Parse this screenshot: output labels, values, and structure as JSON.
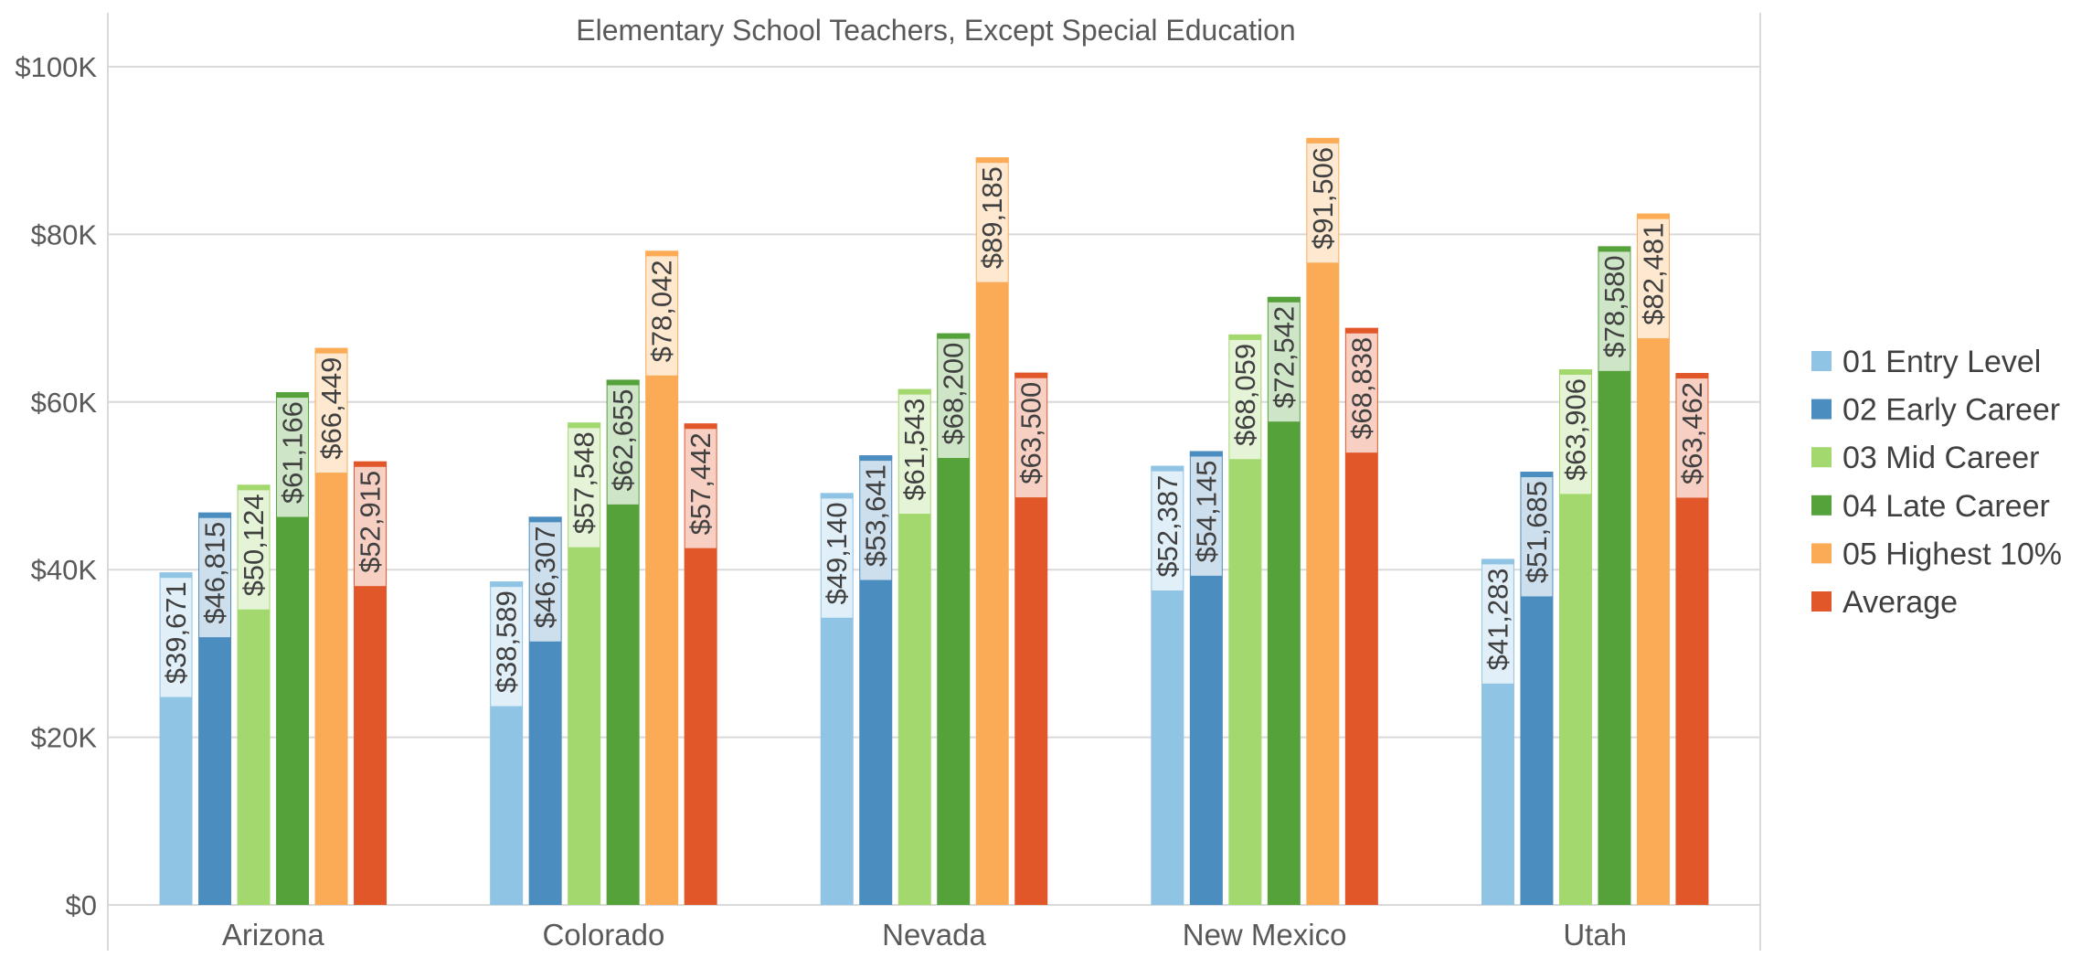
{
  "chart_data": {
    "type": "bar",
    "title": "Elementary School Teachers, Except Special Education",
    "xlabel": "",
    "ylabel": "",
    "categories": [
      "Arizona",
      "Colorado",
      "Nevada",
      "New Mexico",
      "Utah"
    ],
    "ylim": [
      0,
      100000
    ],
    "yticks": [
      0,
      20000,
      40000,
      60000,
      80000,
      100000
    ],
    "ytick_labels": [
      "$0",
      "$20K",
      "$40K",
      "$60K",
      "$80K",
      "$100K"
    ],
    "grid": true,
    "legend_position": "right",
    "series": [
      {
        "name": "01 Entry Level",
        "color": "#90c4e4",
        "values": [
          39671,
          38589,
          49140,
          52387,
          41283
        ],
        "labels": [
          "$39,671",
          "$38,589",
          "$49,140",
          "$52,387",
          "$41,283"
        ]
      },
      {
        "name": "02 Early Career",
        "color": "#4c8dbf",
        "values": [
          46815,
          46307,
          53641,
          54145,
          51685
        ],
        "labels": [
          "$46,815",
          "$46,307",
          "$53,641",
          "$54,145",
          "$51,685"
        ]
      },
      {
        "name": "03 Mid Career",
        "color": "#a2d86e",
        "values": [
          50124,
          57548,
          61543,
          68059,
          63906
        ],
        "labels": [
          "$50,124",
          "$57,548",
          "$61,543",
          "$68,059",
          "$63,906"
        ]
      },
      {
        "name": "04 Late Career",
        "color": "#55a23a",
        "values": [
          61166,
          62655,
          68200,
          72542,
          78580
        ],
        "labels": [
          "$61,166",
          "$62,655",
          "$68,200",
          "$72,542",
          "$78,580"
        ]
      },
      {
        "name": "05 Highest 10%",
        "color": "#fbab56",
        "values": [
          66449,
          78042,
          89185,
          91506,
          82481
        ],
        "labels": [
          "$66,449",
          "$78,042",
          "$89,185",
          "$91,506",
          "$82,481"
        ]
      },
      {
        "name": "Average",
        "color": "#e2572a",
        "values": [
          52915,
          57442,
          63500,
          68838,
          63462
        ],
        "labels": [
          "$52,915",
          "$57,442",
          "$63,500",
          "$68,838",
          "$63,462"
        ]
      }
    ]
  }
}
